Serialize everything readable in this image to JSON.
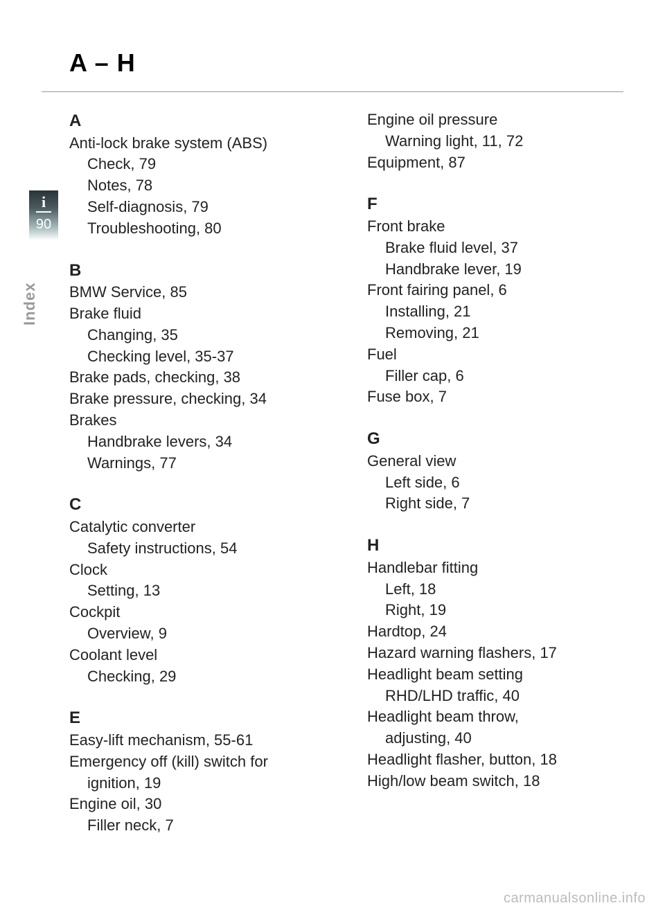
{
  "title": "A – H",
  "sideTab": {
    "icon": "i",
    "pageNum": "90",
    "label": "Index"
  },
  "columns": {
    "left": {
      "A": {
        "letter": "A",
        "e1": "Anti-lock brake system (ABS)",
        "e1a": "Check, 79",
        "e1b": "Notes, 78",
        "e1c": "Self-diagnosis, 79",
        "e1d": "Troubleshooting, 80"
      },
      "B": {
        "letter": "B",
        "e1": "BMW Service, 85",
        "e2": "Brake fluid",
        "e2a": "Changing, 35",
        "e2b": "Checking level, 35-37",
        "e3": "Brake pads, checking, 38",
        "e4": "Brake pressure, checking, 34",
        "e5": "Brakes",
        "e5a": "Handbrake levers, 34",
        "e5b": "Warnings, 77"
      },
      "C": {
        "letter": "C",
        "e1": "Catalytic converter",
        "e1a": "Safety instructions, 54",
        "e2": "Clock",
        "e2a": "Setting, 13",
        "e3": "Cockpit",
        "e3a": "Overview, 9",
        "e4": "Coolant level",
        "e4a": "Checking, 29"
      },
      "E": {
        "letter": "E",
        "e1": "Easy-lift mechanism, 55-61",
        "e2": "Emergency off (kill) switch for",
        "e2a": "ignition, 19",
        "e3": "Engine oil, 30",
        "e3a": "Filler neck, 7"
      }
    },
    "right": {
      "Econt": {
        "e1": "Engine oil pressure",
        "e1a": "Warning light, 11, 72",
        "e2": "Equipment, 87"
      },
      "F": {
        "letter": "F",
        "e1": "Front brake",
        "e1a": "Brake fluid level, 37",
        "e1b": "Handbrake lever, 19",
        "e2": "Front fairing panel, 6",
        "e2a": "Installing, 21",
        "e2b": "Removing, 21",
        "e3": "Fuel",
        "e3a": "Filler cap, 6",
        "e4": "Fuse box, 7"
      },
      "G": {
        "letter": "G",
        "e1": "General view",
        "e1a": "Left side, 6",
        "e1b": "Right side, 7"
      },
      "H": {
        "letter": "H",
        "e1": "Handlebar fitting",
        "e1a": "Left, 18",
        "e1b": "Right, 19",
        "e2": "Hardtop, 24",
        "e3": "Hazard warning flashers, 17",
        "e4": "Headlight beam setting",
        "e4a": "RHD/LHD traffic, 40",
        "e5": "Headlight beam throw,",
        "e5a": "adjusting, 40",
        "e6": "Headlight flasher, button, 18",
        "e7": "High/low beam switch, 18"
      }
    }
  },
  "watermark": "carmanualsonline.info"
}
